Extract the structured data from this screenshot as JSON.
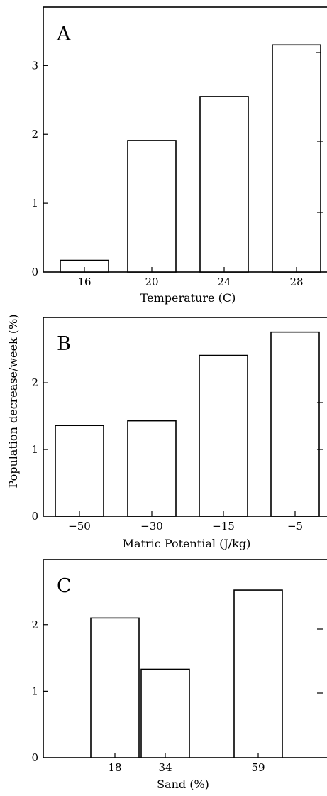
{
  "chart_data": {
    "type": "bar",
    "ylabel": "Population decrease/week (%)",
    "panels": [
      {
        "label": "A",
        "xlabel": "Temperature (C)",
        "categories": [
          "16",
          "20",
          "24",
          "28"
        ],
        "values": [
          0.17,
          1.91,
          2.55,
          3.3
        ],
        "yticks": [
          0,
          1,
          2,
          3
        ],
        "ylim": [
          0,
          3.85
        ]
      },
      {
        "label": "B",
        "xlabel": "Matric Potential (J/kg)",
        "categories": [
          "-50",
          "-30",
          "-15",
          "-5"
        ],
        "values": [
          1.36,
          1.43,
          2.41,
          2.76
        ],
        "yticks": [
          0,
          1,
          2
        ],
        "ylim": [
          0,
          2.98
        ]
      },
      {
        "label": "C",
        "xlabel": "Sand (%)",
        "categories": [
          "18",
          "34",
          "59"
        ],
        "values": [
          2.1,
          1.33,
          2.52
        ],
        "yticks": [
          0,
          1,
          2
        ],
        "ylim": [
          0,
          2.98
        ]
      }
    ]
  }
}
